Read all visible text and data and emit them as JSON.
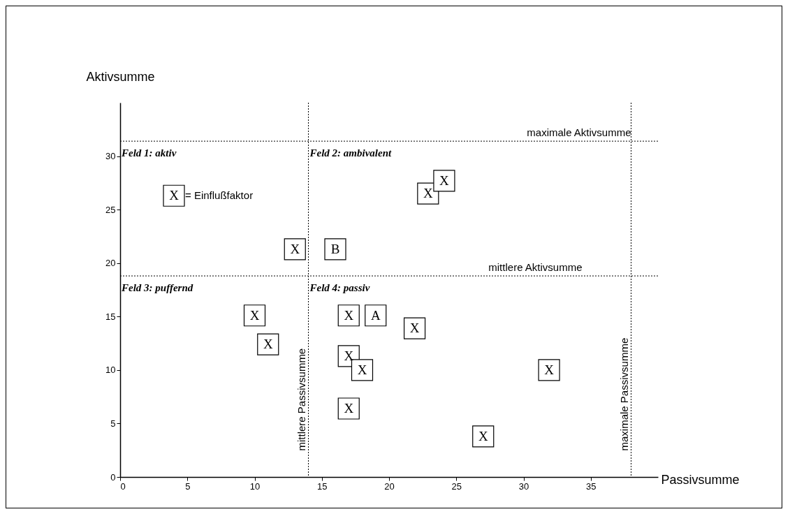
{
  "chart_data": {
    "type": "scatter",
    "xlabel": "Passivsumme",
    "ylabel": "Aktivsumme",
    "xlim": [
      0,
      40
    ],
    "ylim": [
      0,
      35
    ],
    "xticks": [
      0,
      5,
      10,
      15,
      20,
      25,
      30,
      35
    ],
    "yticks": [
      0,
      5,
      10,
      15,
      20,
      25,
      30
    ],
    "grid": false,
    "marker": "square",
    "series": [
      {
        "color": "#000000",
        "x": [
          13,
          16,
          22.9,
          24.1,
          10,
          11,
          17,
          19,
          21.9,
          17,
          18,
          17,
          27,
          31.9
        ],
        "values": [
          21.3,
          21.3,
          26.5,
          27.7,
          15.1,
          12.4,
          15.1,
          15.1,
          13.9,
          11.3,
          10,
          6.4,
          3.8,
          10
        ],
        "value_labels": [
          "X",
          "B",
          "X",
          "X",
          "X",
          "X",
          "X",
          "A",
          "X",
          "X",
          "X",
          "X",
          "X",
          "X"
        ]
      },
      {
        "name": "= Einflußfaktor",
        "color": "#000000",
        "x": [
          4
        ],
        "values": [
          26.3
        ],
        "value_labels": [
          "X"
        ]
      }
    ],
    "ref_lines": [
      {
        "axis": "x",
        "value": 14,
        "label": "mittlere Passivsumme",
        "line_style": "dotted",
        "color": "#000000"
      },
      {
        "axis": "x",
        "value": 38,
        "label": "maximale Passivsumme",
        "line_style": "dotted",
        "color": "#000000"
      },
      {
        "axis": "y",
        "value": 18.8,
        "label": "mittlere Aktivsumme",
        "line_style": "dotted",
        "color": "#000000"
      },
      {
        "axis": "y",
        "value": 31.4,
        "label": "maximale Aktivsumme",
        "line_style": "dotted",
        "color": "#000000"
      }
    ],
    "annotations": [
      "Feld 1: aktiv",
      "Feld 2: ambivalent",
      "Feld 3: puffernd",
      "Feld 4: passiv"
    ]
  }
}
